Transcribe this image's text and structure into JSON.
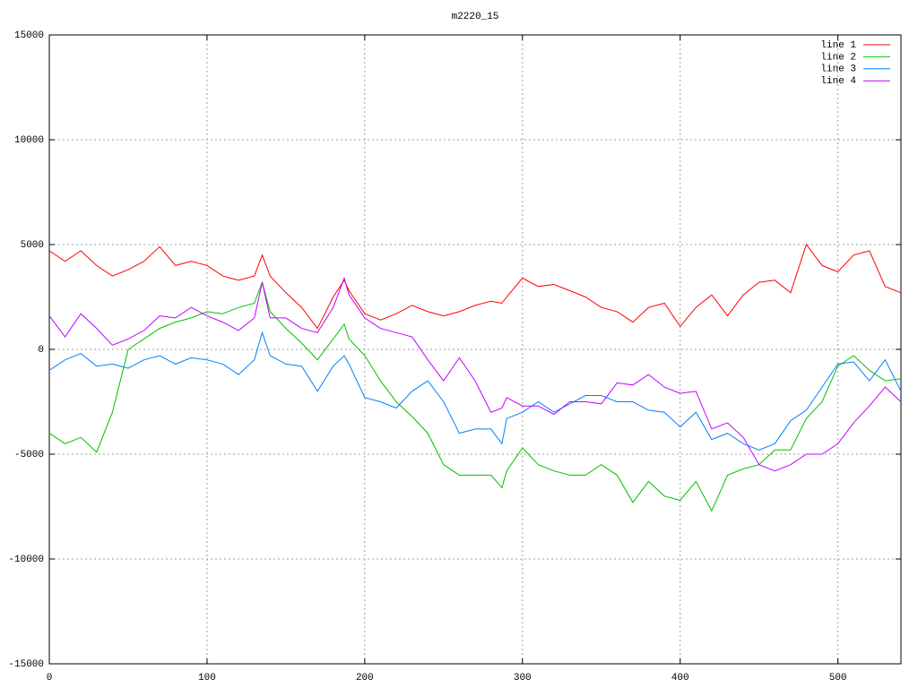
{
  "chart_data": {
    "type": "line",
    "title": "m2220_15",
    "x": [
      0,
      10,
      20,
      30,
      40,
      50,
      60,
      70,
      80,
      90,
      100,
      110,
      120,
      130,
      135,
      140,
      150,
      160,
      170,
      180,
      187,
      190,
      200,
      210,
      220,
      230,
      240,
      250,
      260,
      270,
      280,
      287,
      290,
      300,
      310,
      320,
      330,
      340,
      350,
      360,
      370,
      380,
      390,
      400,
      410,
      420,
      430,
      440,
      450,
      460,
      470,
      480,
      490,
      500,
      510,
      520,
      530,
      540
    ],
    "series": [
      {
        "name": "line 1",
        "color": "#ff0000",
        "values": [
          4700,
          4200,
          4700,
          4000,
          3500,
          3800,
          4200,
          4900,
          4000,
          4200,
          4000,
          3500,
          3300,
          3500,
          4500,
          3500,
          2700,
          2000,
          1000,
          2500,
          3300,
          2800,
          1700,
          1400,
          1700,
          2100,
          1800,
          1600,
          1800,
          2100,
          2300,
          2200,
          2500,
          3400,
          3000,
          3100,
          2800,
          2500,
          2000,
          1800,
          1300,
          2000,
          2200,
          1100,
          2000,
          2600,
          1600,
          2600,
          3200,
          3300,
          2700,
          5000,
          4000,
          3700,
          4500,
          4700,
          3000,
          2700
        ]
      },
      {
        "name": "line 2",
        "color": "#00c000",
        "values": [
          -4000,
          -4500,
          -4200,
          -4900,
          -3000,
          0,
          500,
          1000,
          1300,
          1500,
          1800,
          1700,
          2000,
          2200,
          3200,
          1800,
          1000,
          300,
          -500,
          500,
          1200,
          500,
          -300,
          -1500,
          -2500,
          -3200,
          -4000,
          -5500,
          -6000,
          -6000,
          -6000,
          -6600,
          -5800,
          -4700,
          -5500,
          -5800,
          -6000,
          -6000,
          -5500,
          -6000,
          -7300,
          -6300,
          -7000,
          -7200,
          -6300,
          -7700,
          -6000,
          -5700,
          -5500,
          -4800,
          -4800,
          -3300,
          -2500,
          -800,
          -300,
          -1000,
          -1500,
          -1400
        ]
      },
      {
        "name": "line 3",
        "color": "#0080ff",
        "values": [
          -1000,
          -500,
          -200,
          -800,
          -700,
          -900,
          -500,
          -300,
          -700,
          -400,
          -500,
          -700,
          -1200,
          -500,
          800,
          -300,
          -700,
          -800,
          -2000,
          -800,
          -300,
          -700,
          -2300,
          -2500,
          -2800,
          -2000,
          -1500,
          -2500,
          -4000,
          -3800,
          -3800,
          -4500,
          -3300,
          -3000,
          -2500,
          -3000,
          -2600,
          -2200,
          -2200,
          -2500,
          -2500,
          -2900,
          -3000,
          -3700,
          -3000,
          -4300,
          -4000,
          -4500,
          -4800,
          -4500,
          -3400,
          -2900,
          -1800,
          -700,
          -600,
          -1500,
          -500,
          -2000
        ]
      },
      {
        "name": "line 4",
        "color": "#c000ff",
        "values": [
          1600,
          600,
          1700,
          1000,
          200,
          500,
          900,
          1600,
          1500,
          2000,
          1600,
          1300,
          900,
          1500,
          3200,
          1500,
          1500,
          1000,
          800,
          2000,
          3400,
          2600,
          1500,
          1000,
          800,
          600,
          -500,
          -1500,
          -400,
          -1500,
          -3000,
          -2800,
          -2300,
          -2700,
          -2700,
          -3100,
          -2500,
          -2500,
          -2600,
          -1600,
          -1700,
          -1200,
          -1800,
          -2100,
          -2000,
          -3800,
          -3500,
          -4200,
          -5500,
          -5800,
          -5500,
          -5000,
          -5000,
          -4500,
          -3500,
          -2700,
          -1800,
          -2500
        ]
      }
    ],
    "xlim": [
      0,
      540
    ],
    "xticks": [
      0,
      100,
      200,
      300,
      400,
      500
    ],
    "ylim": [
      -15000,
      15000
    ],
    "yticks": [
      -15000,
      -10000,
      -5000,
      0,
      5000,
      10000,
      15000
    ],
    "grid": true,
    "legend": "top-right"
  }
}
